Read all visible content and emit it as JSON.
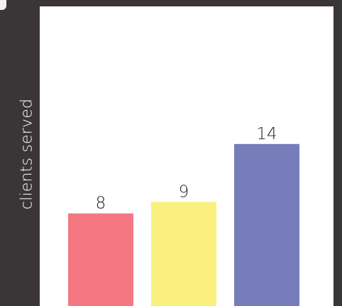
{
  "chart_data": {
    "type": "bar",
    "categories": [
      "",
      "",
      ""
    ],
    "values": [
      8,
      9,
      14
    ],
    "colors": [
      "#f37882",
      "#faf080",
      "#777cbb"
    ],
    "title": "",
    "xlabel": "",
    "ylabel": "clients served",
    "ylim": [
      0,
      16
    ],
    "grid": false,
    "legend": "none",
    "data_labels": [
      "8",
      "9",
      "14"
    ]
  },
  "theme": {
    "background": "#3a3536",
    "panel": "#ffffff"
  }
}
